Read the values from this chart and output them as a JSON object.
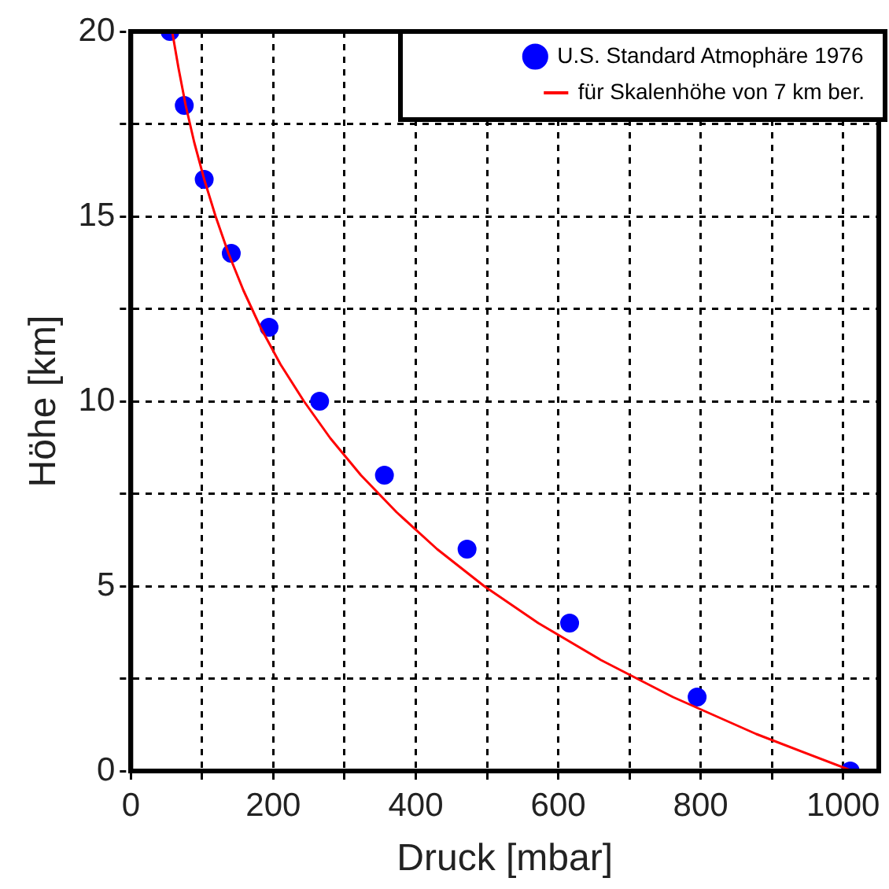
{
  "chart_data": {
    "type": "scatter",
    "xlabel": "Druck [mbar]",
    "ylabel": "Höhe [km]",
    "xlim": [
      0,
      1050
    ],
    "ylim": [
      0,
      20
    ],
    "xticks": [
      0,
      {
        "value": 100,
        "label": null
      },
      200,
      {
        "value": 300,
        "label": null
      },
      400,
      {
        "value": 500,
        "label": null
      },
      600,
      {
        "value": 700,
        "label": null
      },
      800,
      {
        "value": 900,
        "label": null
      },
      1000
    ],
    "yticks": [
      0,
      {
        "value": 2.5,
        "label": null
      },
      5,
      {
        "value": 7.5,
        "label": null
      },
      10,
      {
        "value": 12.5,
        "label": null
      },
      15,
      {
        "value": 17.5,
        "label": null
      },
      20
    ],
    "grid": true,
    "legend": "top right",
    "series": [
      {
        "name": "U.S. Standard Atmophäre 1976",
        "type": "scatter",
        "marker": "circle",
        "color": "#0000ff",
        "x": [
          1010,
          795,
          616,
          472,
          356,
          265,
          194,
          141,
          103,
          75,
          55
        ],
        "values": [
          0,
          2,
          4,
          6,
          8,
          10,
          12,
          14,
          16,
          18,
          20
        ]
      },
      {
        "name": "für Skalenhöhe von 7 km ber.",
        "type": "line",
        "marker": "none",
        "line_style": "solid",
        "color": "#ff0000",
        "x": [
          1013,
          878,
          761,
          660,
          572,
          496,
          430,
          373,
          323,
          280,
          243,
          210,
          182,
          158,
          137,
          119,
          103,
          89,
          77,
          67,
          58
        ],
        "values": [
          0,
          1,
          2,
          3,
          4,
          5,
          6,
          7,
          8,
          9,
          10,
          11,
          12,
          13,
          14,
          15,
          16,
          17,
          18,
          19,
          20
        ]
      }
    ]
  }
}
